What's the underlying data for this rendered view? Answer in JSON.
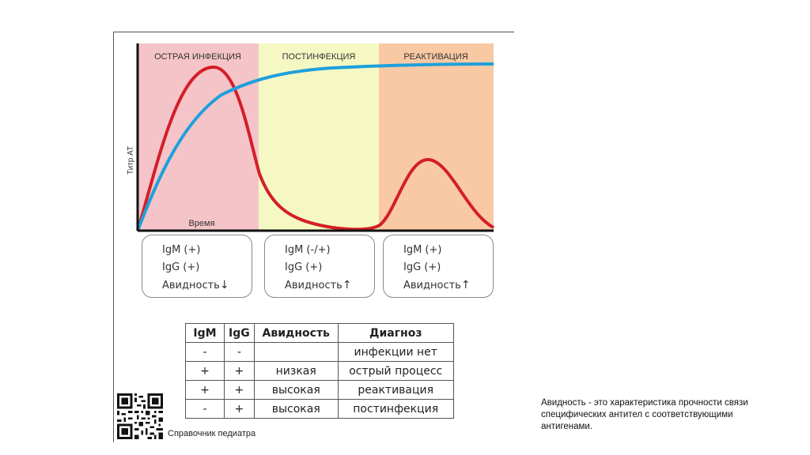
{
  "phases": [
    {
      "label": "ОСТРАЯ ИНФЕКЦИЯ",
      "color": "#f5c4c9"
    },
    {
      "label": "ПОСТИНФЕКЦИЯ",
      "color": "#f6f8c3"
    },
    {
      "label": "РЕАКТИВАЦИЯ",
      "color": "#f9c9a3"
    }
  ],
  "axis": {
    "ylabel": "Титр АТ",
    "xlabel": "Время"
  },
  "series_colors": {
    "igm": "#d31f27",
    "igg": "#1fa0dc"
  },
  "boxes": [
    {
      "igm": "IgM (+)",
      "igg": "IgG (+)",
      "avidity": "Авидность",
      "arrow": "↓"
    },
    {
      "igm": "IgM (-/+)",
      "igg": "IgG (+)",
      "avidity": "Авидность",
      "arrow": "↑"
    },
    {
      "igm": "IgM (+)",
      "igg": "IgG (+)",
      "avidity": "Авидность",
      "arrow": "↑"
    }
  ],
  "table": {
    "headers": [
      "IgM",
      "IgG",
      "Авидность",
      "Диагноз"
    ],
    "rows": [
      [
        "-",
        "-",
        "",
        "инфекции нет"
      ],
      [
        "+",
        "+",
        "низкая",
        "острый процесс"
      ],
      [
        "+",
        "+",
        "высокая",
        "реактивация"
      ],
      [
        "-",
        "+",
        "высокая",
        "постинфекция"
      ]
    ]
  },
  "qr_caption": "Справочник педиатра",
  "note": "Авидность - это характеристика прочности связи специфических антител с соответствующими антигенами."
}
